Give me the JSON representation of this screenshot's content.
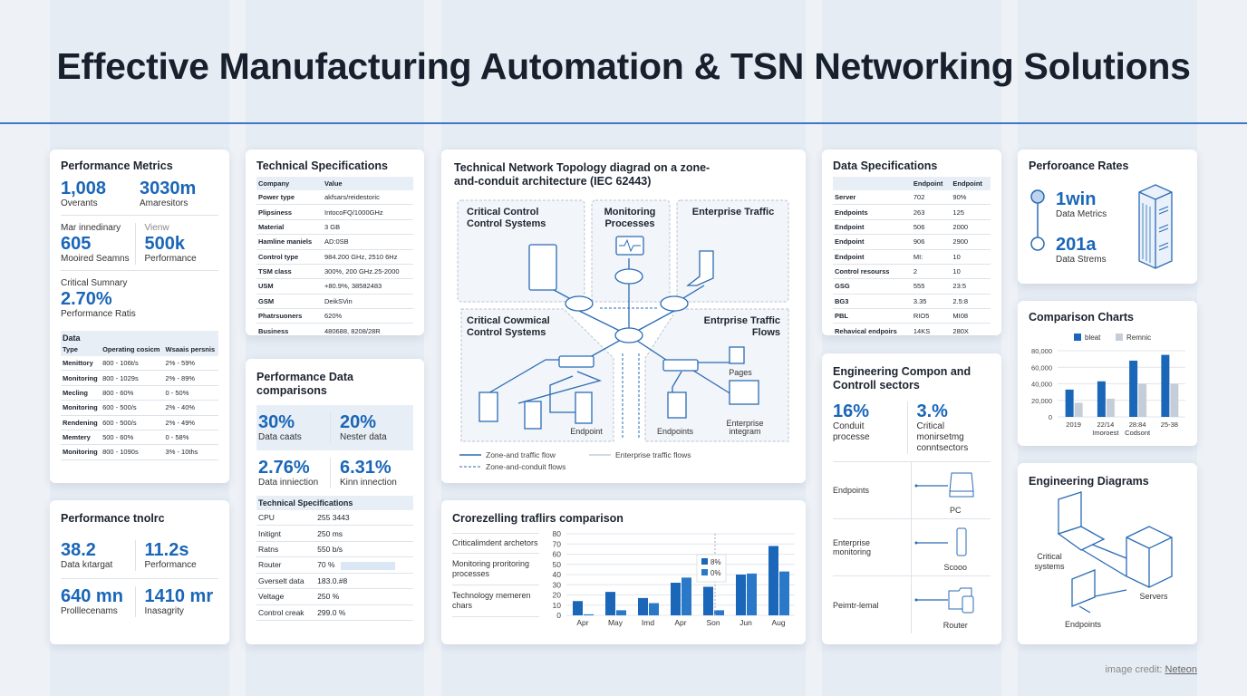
{
  "title": "Effective Manufacturing Automation & TSN Networking Solutions",
  "perf_metrics": {
    "title": "Performance Metrics",
    "m1": {
      "value": "1,008",
      "label": "Overants"
    },
    "m2": {
      "value": "3030m",
      "label": "Amaresitors"
    },
    "m3": {
      "head": "Mar innedinary",
      "value": "605",
      "label": "Mooired Seamns"
    },
    "m4": {
      "head": "Vienw",
      "value": "500k",
      "label": "Performance"
    },
    "m5": {
      "head": "Critical Sumnary",
      "value": "2.70%",
      "label": "Performance Ratis"
    },
    "table": {
      "caption": "Data",
      "headers": [
        "Type",
        "Operating cosicm",
        "Wsaais persnis"
      ],
      "rows": [
        [
          "Menittory",
          "800 - 106t/s",
          "2% - 59%"
        ],
        [
          "Monitoring",
          "800 - 1029s",
          "2% - 89%"
        ],
        [
          "Mecling",
          "800 - 60%",
          "0 - 50%"
        ],
        [
          "Monitoring",
          "600 - 500/s",
          "2% - 40%"
        ],
        [
          "Rendening",
          "600 - 500/s",
          "2% - 49%"
        ],
        [
          "Memtery",
          "500 - 60%",
          "0 - 58%"
        ],
        [
          "Monitoring",
          "800 - 1090s",
          "3% - 10ths"
        ]
      ]
    }
  },
  "tech_specs": {
    "title": "Technical Specifications",
    "headers": [
      "Company",
      "Value"
    ],
    "rows": [
      [
        "Power type",
        "akfsars/reidestoric"
      ],
      [
        "Plipsiness",
        "IntocoFQ/1000GHz"
      ],
      [
        "Material",
        "3 GB"
      ],
      [
        "Hamline maniels",
        "AD:0SB"
      ],
      [
        "Control type",
        "984.200 GHz, 2510 6Hz"
      ],
      [
        "TSM class",
        "300%, 200 GHz.25-2000"
      ],
      [
        "USM",
        "+80.9%, 38582483"
      ],
      [
        "GSM",
        "DeikSVin"
      ],
      [
        "Phatrsuoners",
        "620%"
      ],
      [
        "Business",
        "480688, 8208/28R"
      ]
    ]
  },
  "perf_tnolrc": {
    "title": "Performance tnolrc",
    "m1": {
      "value": "38.2",
      "label": "Data kıtargat"
    },
    "m2": {
      "value": "11.2s",
      "label": "Performance"
    },
    "m3": {
      "value": "640 mn",
      "label": "Prolllecenams"
    },
    "m4": {
      "value": "1410 mr",
      "label": "Inasagrity"
    }
  },
  "perf_data": {
    "title": "Performance Data comparisons",
    "m1": {
      "value": "30%",
      "label": "Data caats"
    },
    "m2": {
      "value": "20%",
      "label": "Nester data"
    },
    "m3": {
      "value": "2.76%",
      "label": "Data inniection"
    },
    "m4": {
      "value": "6.31%",
      "label": "Kinn innection"
    },
    "specs_title": "Technical Specifications",
    "rows": [
      [
        "CPU",
        "255 3443"
      ],
      [
        "Initignt",
        "250 ms"
      ],
      [
        "Ratns",
        "550 b/s"
      ],
      [
        "Router",
        "70 %"
      ],
      [
        "Gverselt data",
        "183.0.#8"
      ],
      [
        "Veltage",
        "250 %"
      ],
      [
        "Control creak",
        "299.0 %"
      ]
    ],
    "router_progress": 70
  },
  "topology": {
    "title": "Technical Network Topology diagrad on a zone-and-conduit architecture (IEC 62443)",
    "zones": [
      "Critical Control Control Systems",
      "Monitoring Processes",
      "Enterprise Traffic",
      "Critical Cowmical Control Systems",
      "Entrprise Traffic Flows"
    ],
    "labels": {
      "endpoint": "Endpoint",
      "endpoints": "Endpoints",
      "pages": "Pages",
      "enterprise": "Enterprise integram"
    },
    "legend": [
      "Zone-and traffic flow",
      "Enterprise traffic flows",
      "Zone-and-conduit flows"
    ]
  },
  "traffic": {
    "title": "Crorezelling traflirs comparison",
    "side": [
      "Criticalimdent archetors",
      "Monitoring proritoring processes",
      "Technology rnemeren chars"
    ]
  },
  "data_specs": {
    "title": "Data Specifications",
    "headers": [
      "",
      "Endpoint",
      "Endpoint"
    ],
    "rows": [
      [
        "Server",
        "702",
        "90%"
      ],
      [
        "Endpoints",
        "263",
        "125"
      ],
      [
        "Endpoint",
        "506",
        "2000"
      ],
      [
        "Endpoint",
        "906",
        "2900"
      ],
      [
        "Endpoint",
        "MI:",
        "10"
      ],
      [
        "Control resourss",
        "2",
        "10"
      ],
      [
        "GSG",
        "555",
        "23:5"
      ],
      [
        "BG3",
        "3.35",
        "2.5:8"
      ],
      [
        "PBL",
        "RIO5",
        "MI08"
      ],
      [
        "Rehavical endpoirs",
        "14KS",
        "280X"
      ]
    ]
  },
  "eng_comp": {
    "title": "Engineering Compon and Controll sectors",
    "m1": {
      "value": "16%",
      "label": "Conduit processe"
    },
    "m2": {
      "value": "3.%",
      "label": "Critical monirsetmg conntsectors"
    },
    "rows": [
      {
        "label": "Endpoints",
        "device": "PC",
        "icon": "drive-icon"
      },
      {
        "label": "Enterprise monitoring",
        "device": "Scooo",
        "icon": "usb-icon"
      },
      {
        "label": "Peimtr-lemal",
        "device": "Router",
        "icon": "folder-icon"
      }
    ]
  },
  "perf_rates": {
    "title": "Perforoance Rates",
    "m1": {
      "value": "1win",
      "label": "Data Metrics"
    },
    "m2": {
      "value": "201a",
      "label": "Data Strems"
    }
  },
  "eng_diagrams": {
    "title": "Engineering Diagrams",
    "labels": [
      "Critical systems",
      "Servers",
      "Endpoints"
    ]
  },
  "credit": {
    "prefix": "image credit: ",
    "name": "Neteon"
  },
  "colors": {
    "accent": "#1a66b8",
    "secondary": "#c5ced8",
    "line": "#3c78c4"
  },
  "chart_data": [
    {
      "type": "bar",
      "title": "Crorezelling traflirs comparison",
      "categories": [
        "Apr",
        "May",
        "Imd",
        "Apr",
        "Son",
        "Jun",
        "Aug"
      ],
      "ylim": [
        0,
        80
      ],
      "yticks": [
        0,
        10,
        20,
        30,
        40,
        50,
        60,
        70,
        80
      ],
      "grid": true,
      "legend": "top-right",
      "series": [
        {
          "name": "8%",
          "values": [
            14,
            23,
            17,
            32,
            28,
            40,
            68
          ],
          "color": "#1a66b8"
        },
        {
          "name": "0%",
          "values": [
            1,
            5,
            12,
            37,
            5,
            41,
            43
          ],
          "color": "#2a78c8"
        }
      ]
    },
    {
      "type": "bar",
      "title": "Comparison Charts",
      "categories": [
        "2019",
        "22/14 Imoroest",
        "28:84 Codsont",
        "25-38"
      ],
      "ylim": [
        0,
        80000
      ],
      "yticks": [
        "0",
        "20,000",
        "40,000",
        "60,000",
        "80,000"
      ],
      "grid": true,
      "legend": "top",
      "series": [
        {
          "name": "bleat",
          "values": [
            33000,
            43000,
            68000,
            75000
          ],
          "color": "#1a66b8"
        },
        {
          "name": "Remnic",
          "values": [
            17000,
            22000,
            40000,
            40000
          ],
          "color": "#c5ced8"
        }
      ]
    }
  ]
}
